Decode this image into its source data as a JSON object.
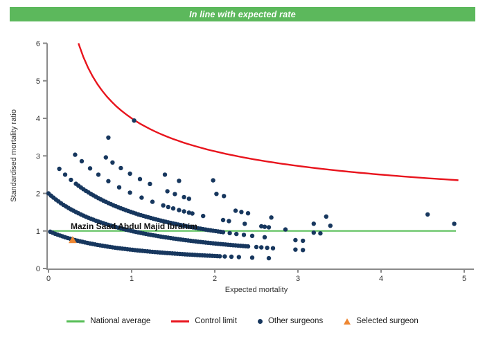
{
  "banner": {
    "text": "In line with expected rate",
    "color": "#5cb85c"
  },
  "chart_data": {
    "type": "scatter",
    "xlabel": "Expected mortality",
    "ylabel": "Standardised mortality ratio",
    "xlim": [
      0,
      5
    ],
    "ylim": [
      0,
      6
    ],
    "xticks": [
      0,
      1,
      2,
      3,
      4,
      5
    ],
    "yticks": [
      0,
      1,
      2,
      3,
      4,
      5,
      6
    ],
    "grid": false,
    "legend_position": "bottom",
    "national_average": {
      "y": 1,
      "x_start": 0,
      "x_end": 4.9,
      "color": "#55bd55"
    },
    "control_limit": {
      "formula": "y = 1 + 3/sqrt(x)",
      "a": 1,
      "b": 3,
      "x_start": 0.36,
      "x_end": 4.93,
      "color": "#e8141d"
    },
    "other_surgeons": {
      "color": "#17375e",
      "curve_formula": "y = k / (1 + x)",
      "bands": [
        {
          "k": 1,
          "x_start": 0.02,
          "x_end": 2.06,
          "step": 0.03
        },
        {
          "k": 2,
          "x_start": 0.0,
          "x_end": 2.42,
          "step": 0.03
        },
        {
          "k": 3,
          "x_start": 0.33,
          "x_end": 2.1,
          "step": 0.03
        }
      ],
      "dots": [
        {
          "k": 1,
          "x": [
            2.12,
            2.2,
            2.29,
            2.45,
            2.65
          ]
        },
        {
          "k": 2,
          "x": [
            2.5,
            2.56,
            2.63,
            2.7,
            2.97,
            3.06
          ]
        },
        {
          "k": 3,
          "x": [
            0.13,
            0.2,
            0.27,
            2.18,
            2.26,
            2.35,
            2.45,
            2.6,
            2.97,
            3.06
          ]
        },
        {
          "k": 4,
          "x": [
            0.32,
            0.4,
            0.5,
            0.6,
            0.72,
            0.85,
            0.98,
            1.12,
            1.25,
            1.38,
            1.44,
            1.5,
            1.57,
            1.63,
            1.69,
            1.73,
            1.86,
            2.1,
            2.17,
            2.36,
            2.56,
            2.6,
            2.65,
            2.85,
            3.19,
            3.27
          ]
        },
        {
          "k": 5,
          "x": [
            0.69,
            0.77,
            0.87,
            0.98,
            1.1,
            1.22,
            1.43,
            1.52,
            1.63,
            1.69,
            2.25,
            2.32,
            2.4,
            2.68,
            3.19,
            3.39
          ]
        },
        {
          "k": 6,
          "x": [
            0.72,
            1.4,
            1.57,
            2.02,
            2.11,
            3.34
          ]
        },
        {
          "k": 7,
          "x": [
            1.98,
            4.88
          ]
        },
        {
          "k": 8,
          "x": [
            1.03,
            4.56
          ]
        }
      ]
    },
    "selected_surgeon": {
      "x": 0.29,
      "y": 0.76,
      "label": "Mazin Saad Abdul Majid Ibrahim",
      "color": "#ee8733"
    }
  },
  "legend": {
    "items": [
      {
        "label": "National average",
        "type": "line",
        "color": "#55bd55"
      },
      {
        "label": "Control limit",
        "type": "line",
        "color": "#e8141d"
      },
      {
        "label": "Other surgeons",
        "type": "dot",
        "color": "#17375e"
      },
      {
        "label": "Selected surgeon",
        "type": "triangle",
        "color": "#ee8733"
      }
    ]
  }
}
